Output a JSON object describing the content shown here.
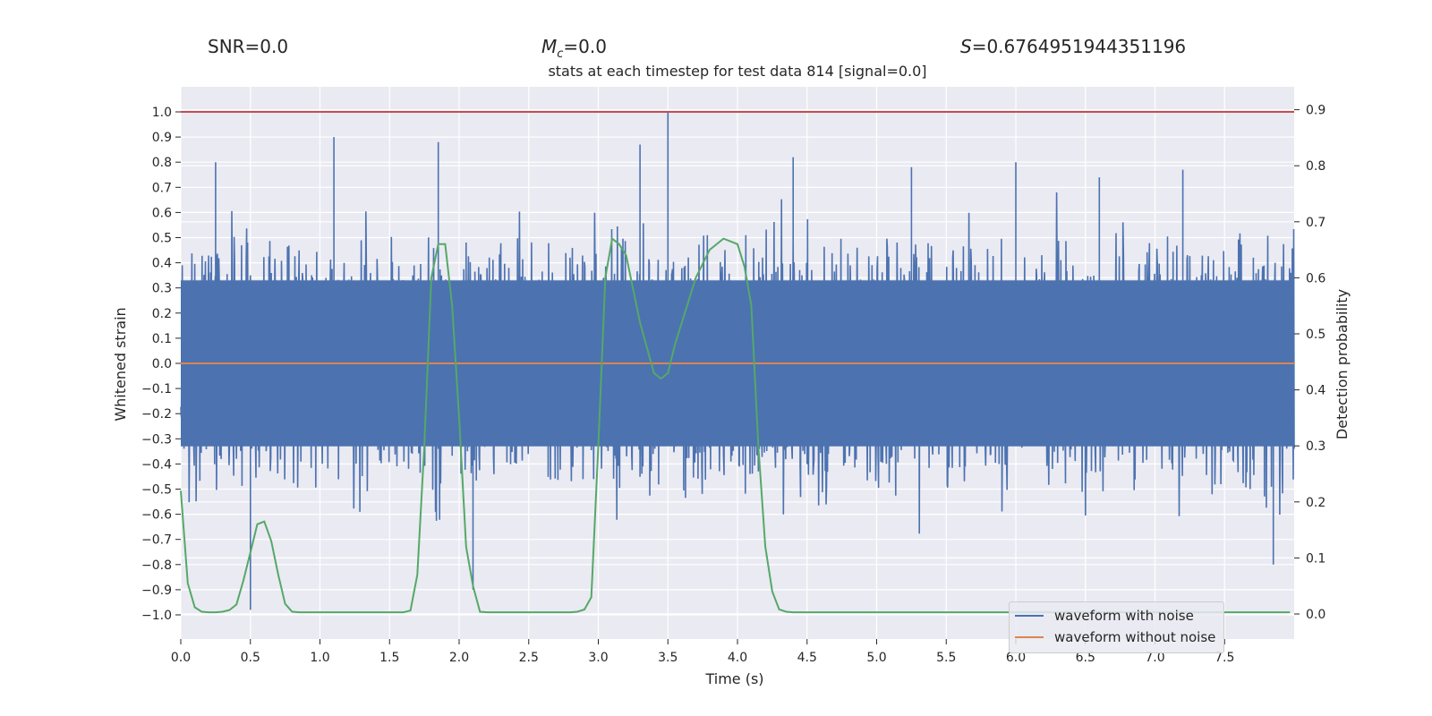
{
  "header": {
    "snr_label": "SNR=0.0",
    "mc_symbol": "M",
    "mc_sub": "c",
    "mc_value": "=0.0",
    "s_symbol": "S",
    "s_value": "=0.6764951944351196"
  },
  "chart_data": {
    "type": "line",
    "title": "stats at each timestep for test data 814 [signal=0.0]",
    "xlabel": "Time (s)",
    "ylabel": "Whitened strain",
    "y2label": "Detection probability",
    "xlim": [
      0.0,
      8.0
    ],
    "ylim": [
      -1.1,
      1.1
    ],
    "y2lim": [
      -0.045,
      0.945
    ],
    "grid": true,
    "legend_position": "lower-right",
    "x_ticks": [
      0.0,
      0.5,
      1.0,
      1.5,
      2.0,
      2.5,
      3.0,
      3.5,
      4.0,
      4.5,
      5.0,
      5.5,
      6.0,
      6.5,
      7.0,
      7.5
    ],
    "x_tick_labels": [
      "0.0",
      "0.5",
      "1.0",
      "1.5",
      "2.0",
      "2.5",
      "3.0",
      "3.5",
      "4.0",
      "4.5",
      "5.0",
      "5.5",
      "6.0",
      "6.5",
      "7.0",
      "7.5"
    ],
    "y_ticks": [
      1.0,
      0.9,
      0.8,
      0.7,
      0.6,
      0.5,
      0.4,
      0.3,
      0.2,
      0.1,
      0.0,
      -0.1,
      -0.2,
      -0.3,
      -0.4,
      -0.5,
      -0.6,
      -0.7,
      -0.8,
      -0.9,
      -1.0
    ],
    "y_tick_labels": [
      "1.0",
      "0.9",
      "0.8",
      "0.7",
      "0.6",
      "0.5",
      "0.4",
      "0.3",
      "0.2",
      "0.1",
      "0.0",
      "−0.1",
      "−0.2",
      "−0.3",
      "−0.4",
      "−0.5",
      "−0.6",
      "−0.7",
      "−0.8",
      "−0.9",
      "−1.0"
    ],
    "y2_ticks": [
      0.9,
      0.8,
      0.7,
      0.6,
      0.5,
      0.4,
      0.3,
      0.2,
      0.1,
      0.0
    ],
    "y2_tick_labels": [
      "0.9",
      "0.8",
      "0.7",
      "0.6",
      "0.5",
      "0.4",
      "0.3",
      "0.2",
      "0.1",
      "0.0"
    ],
    "series": [
      {
        "name": "waveform with noise",
        "color": "#4c72b0",
        "axis": "left",
        "description_values": "dense whitened noise between about -0.55 and 0.55 with peaks up to 1.0",
        "peaks_x": [
          0.25,
          0.5,
          1.1,
          1.85,
          2.1,
          3.5,
          3.3,
          4.4,
          5.25,
          6.0,
          6.6,
          7.2,
          7.85
        ],
        "peaks_y": [
          0.8,
          -0.98,
          0.9,
          0.88,
          -0.9,
          1.0,
          0.87,
          0.82,
          0.78,
          0.8,
          0.74,
          0.77,
          -0.8
        ],
        "envelope_upper": 0.55,
        "envelope_lower": -0.55
      },
      {
        "name": "waveform without noise",
        "color": "#dd8452",
        "axis": "left",
        "x": [
          0.0,
          8.0
        ],
        "y": [
          0.0,
          0.0
        ]
      },
      {
        "name": "detection probability",
        "color": "#55a868",
        "axis": "right",
        "x": [
          0.0,
          0.05,
          0.1,
          0.15,
          0.2,
          0.25,
          0.3,
          0.35,
          0.4,
          0.45,
          0.5,
          0.55,
          0.6,
          0.65,
          0.7,
          0.75,
          0.8,
          0.85,
          0.9,
          0.95,
          1.0,
          1.5,
          1.6,
          1.65,
          1.7,
          1.75,
          1.8,
          1.85,
          1.9,
          1.95,
          2.0,
          2.05,
          2.1,
          2.15,
          2.2,
          2.25,
          2.3,
          2.8,
          2.85,
          2.9,
          2.95,
          3.0,
          3.05,
          3.1,
          3.15,
          3.2,
          3.3,
          3.4,
          3.45,
          3.5,
          3.55,
          3.6,
          3.7,
          3.8,
          3.9,
          4.0,
          4.05,
          4.1,
          4.15,
          4.2,
          4.25,
          4.3,
          4.35,
          4.4,
          4.45,
          4.5,
          5.0,
          6.0,
          7.0,
          7.97
        ],
        "y": [
          0.22,
          0.055,
          0.012,
          0.004,
          0.003,
          0.003,
          0.004,
          0.007,
          0.017,
          0.06,
          0.11,
          0.16,
          0.165,
          0.13,
          0.07,
          0.018,
          0.004,
          0.003,
          0.003,
          0.003,
          0.003,
          0.003,
          0.003,
          0.006,
          0.07,
          0.3,
          0.6,
          0.66,
          0.66,
          0.55,
          0.35,
          0.12,
          0.05,
          0.004,
          0.003,
          0.003,
          0.003,
          0.003,
          0.004,
          0.008,
          0.03,
          0.3,
          0.6,
          0.67,
          0.66,
          0.64,
          0.52,
          0.43,
          0.42,
          0.43,
          0.48,
          0.52,
          0.6,
          0.65,
          0.67,
          0.66,
          0.62,
          0.55,
          0.3,
          0.12,
          0.04,
          0.008,
          0.004,
          0.003,
          0.003,
          0.003,
          0.003,
          0.003,
          0.003,
          0.003
        ]
      },
      {
        "name": "threshold",
        "color": "#c44e52",
        "axis": "left",
        "x": [
          0.0,
          8.0
        ],
        "y": [
          1.0,
          1.0
        ]
      }
    ]
  }
}
